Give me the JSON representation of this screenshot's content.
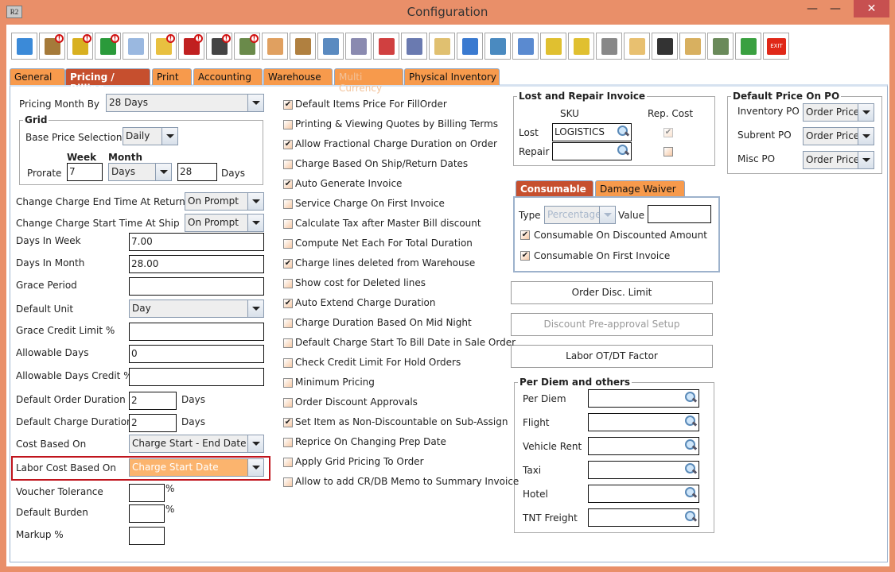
{
  "window": {
    "title": "Configuration",
    "app_icon": "R2",
    "controls": {
      "minimize": "—",
      "maximize": "☐",
      "close": "✕"
    }
  },
  "toolbar": [
    {
      "name": "save-icon",
      "color": "#3b8ad8",
      "alert": false
    },
    {
      "name": "shipping-icon",
      "color": "#a57a3a",
      "alert": true
    },
    {
      "name": "coins-icon",
      "color": "#d8b020",
      "alert": true
    },
    {
      "name": "invoice-icon",
      "color": "#2a9a3a",
      "alert": true
    },
    {
      "name": "edit-document-icon",
      "color": "#9ab8e0",
      "alert": false
    },
    {
      "name": "form-icon",
      "color": "#e8c040",
      "alert": true
    },
    {
      "name": "pay-icon",
      "color": "#c02020",
      "alert": true
    },
    {
      "name": "grid-icon",
      "color": "#444444",
      "alert": true
    },
    {
      "name": "calculator-sheet-icon",
      "color": "#6a8a4a",
      "alert": true
    },
    {
      "name": "lock-arrow-icon",
      "color": "#e0a060",
      "alert": false
    },
    {
      "name": "calendar-icon",
      "color": "#b08040",
      "alert": false
    },
    {
      "name": "ruler-triangle-icon",
      "color": "#5a8ac0",
      "alert": false
    },
    {
      "name": "gears-icon",
      "color": "#8a8ab0",
      "alert": false
    },
    {
      "name": "cubes-icon",
      "color": "#d04040",
      "alert": false
    },
    {
      "name": "dollar-gear-icon",
      "color": "#6a7ab0",
      "alert": false
    },
    {
      "name": "folder-clock-icon",
      "color": "#e0c070",
      "alert": false
    },
    {
      "name": "card-edit-icon",
      "color": "#3a7ad0",
      "alert": false
    },
    {
      "name": "document-cubes-icon",
      "color": "#4a8ac0",
      "alert": false
    },
    {
      "name": "document-return-icon",
      "color": "#5a8ad0",
      "alert": false
    },
    {
      "name": "shield-binoculars-icon",
      "color": "#e0c030",
      "alert": false
    },
    {
      "name": "shield-user-icon",
      "color": "#e0c030",
      "alert": false
    },
    {
      "name": "scanner-gear-icon",
      "color": "#888888",
      "alert": false
    },
    {
      "name": "folder-lock-icon",
      "color": "#e8c070",
      "alert": false
    },
    {
      "name": "chess-cubes-icon",
      "color": "#333333",
      "alert": false
    },
    {
      "name": "folder-gear-icon",
      "color": "#d8b060",
      "alert": false
    },
    {
      "name": "calculator-gear-icon",
      "color": "#6a8a5a",
      "alert": false
    },
    {
      "name": "transfer-icon",
      "color": "#3aa040",
      "alert": false
    },
    {
      "name": "exit-icon",
      "color": "#e02818",
      "alert": false,
      "text": "EXIT"
    }
  ],
  "tabs": [
    {
      "label": "General",
      "state": "normal"
    },
    {
      "label": "Pricing / Billing",
      "state": "active"
    },
    {
      "label": "Print",
      "state": "normal"
    },
    {
      "label": "Accounting",
      "state": "normal"
    },
    {
      "label": "Warehouse",
      "state": "normal"
    },
    {
      "label": "Multi Currency",
      "state": "disabled"
    },
    {
      "label": "Physical Inventory",
      "state": "normal"
    }
  ],
  "left": {
    "pricing_month_by": {
      "label": "Pricing Month By",
      "value": "28 Days"
    },
    "grid": {
      "legend": "Grid",
      "base_price_label": "Base Price Selection",
      "base_price_value": "Daily",
      "week_header": "Week",
      "month_header": "Month",
      "prorate_label": "Prorate",
      "week_value": "7",
      "month_unit": "Days",
      "month_value": "28",
      "days_suffix": "Days"
    },
    "end_time": {
      "label": "Change Charge End Time At Return",
      "value": "On Prompt"
    },
    "start_time": {
      "label": "Change Charge Start Time At Ship",
      "value": "On Prompt"
    },
    "days_in_week": {
      "label": "Days In Week",
      "value": "7.00"
    },
    "days_in_month": {
      "label": "Days In Month",
      "value": "28.00"
    },
    "grace_period": {
      "label": "Grace Period",
      "value": ""
    },
    "default_unit": {
      "label": "Default Unit",
      "value": "Day"
    },
    "grace_credit": {
      "label": "Grace Credit Limit %",
      "value": ""
    },
    "allowable_days": {
      "label": "Allowable Days",
      "value": "0"
    },
    "allowable_days_credit": {
      "label": "Allowable Days Credit %",
      "value": ""
    },
    "order_duration": {
      "label": "Default Order Duration",
      "value": "2",
      "suffix": "Days"
    },
    "charge_duration": {
      "label": "Default Charge Duration",
      "value": "2",
      "suffix": "Days"
    },
    "cost_based_on": {
      "label": "Cost Based On",
      "value": "Charge Start - End Date"
    },
    "labor_cost_based_on": {
      "label": "Labor Cost Based On",
      "value": "Charge Start Date"
    },
    "voucher_tolerance": {
      "label": "Voucher Tolerance",
      "value": "",
      "suffix": "%"
    },
    "default_burden": {
      "label": "Default Burden",
      "value": "",
      "suffix": "%"
    },
    "markup": {
      "label": "Markup %",
      "value": ""
    }
  },
  "options": [
    {
      "label": "Default Items Price For FillOrder",
      "checked": true
    },
    {
      "label": "Printing & Viewing Quotes by Billing Terms",
      "checked": false
    },
    {
      "label": "Allow Fractional Charge Duration on Order",
      "checked": true
    },
    {
      "label": "Charge Based On Ship/Return Dates",
      "checked": false
    },
    {
      "label": "Auto Generate Invoice",
      "checked": true
    },
    {
      "label": "Service Charge On First Invoice",
      "checked": false
    },
    {
      "label": "Calculate Tax after Master Bill discount",
      "checked": false
    },
    {
      "label": "Compute Net Each For Total Duration",
      "checked": false
    },
    {
      "label": "Charge lines deleted from Warehouse",
      "checked": true
    },
    {
      "label": "Show cost for Deleted lines",
      "checked": false
    },
    {
      "label": "Auto Extend Charge Duration",
      "checked": true
    },
    {
      "label": "Charge Duration Based On Mid Night",
      "checked": false
    },
    {
      "label": "Default Charge Start To Bill Date in Sale Order",
      "checked": false
    },
    {
      "label": "Check Credit Limit For Hold Orders",
      "checked": false
    },
    {
      "label": "Minimum Pricing",
      "checked": false
    },
    {
      "label": "Order Discount Approvals",
      "checked": false
    },
    {
      "label": "Set Item as Non-Discountable on Sub-Assign",
      "checked": true
    },
    {
      "label": "Reprice On Changing Prep Date",
      "checked": false
    },
    {
      "label": "Apply Grid Pricing To Order",
      "checked": false
    },
    {
      "label": "Allow to add CR/DB Memo to Summary Invoice",
      "checked": false
    }
  ],
  "lost_repair": {
    "legend": "Lost and Repair Invoice",
    "sku_header": "SKU",
    "rep_cost_header": "Rep. Cost",
    "lost_label": "Lost",
    "lost_value": "LOGISTICS",
    "lost_rep_cost": true,
    "repair_label": "Repair",
    "repair_value": "",
    "repair_rep_cost": false
  },
  "default_price_po": {
    "legend": "Default Price On PO",
    "inventory_label": "Inventory PO",
    "inventory_value": "Order Price",
    "subrent_label": "Subrent PO",
    "subrent_value": "Order Price",
    "misc_label": "Misc PO",
    "misc_value": "Order Price"
  },
  "sub_tabs": [
    {
      "label": "Consumable",
      "state": "active"
    },
    {
      "label": "Damage Waiver",
      "state": "normal"
    }
  ],
  "consumable": {
    "type_label": "Type",
    "type_value": "Percentage",
    "value_label": "Value",
    "value": "",
    "discounted_label": "Consumable On Discounted Amount",
    "discounted_checked": true,
    "first_invoice_label": "Consumable On First Invoice",
    "first_invoice_checked": true
  },
  "buttons": {
    "order_disc_limit": "Order Disc. Limit",
    "discount_preapproval": "Discount Pre-approval Setup",
    "labor_factor": "Labor OT/DT Factor"
  },
  "per_diem": {
    "legend": "Per Diem and others",
    "rows": [
      {
        "label": "Per Diem",
        "value": ""
      },
      {
        "label": "Flight",
        "value": ""
      },
      {
        "label": "Vehicle Rent",
        "value": ""
      },
      {
        "label": "Taxi",
        "value": ""
      },
      {
        "label": "Hotel",
        "value": ""
      },
      {
        "label": "TNT Freight",
        "value": ""
      }
    ]
  }
}
